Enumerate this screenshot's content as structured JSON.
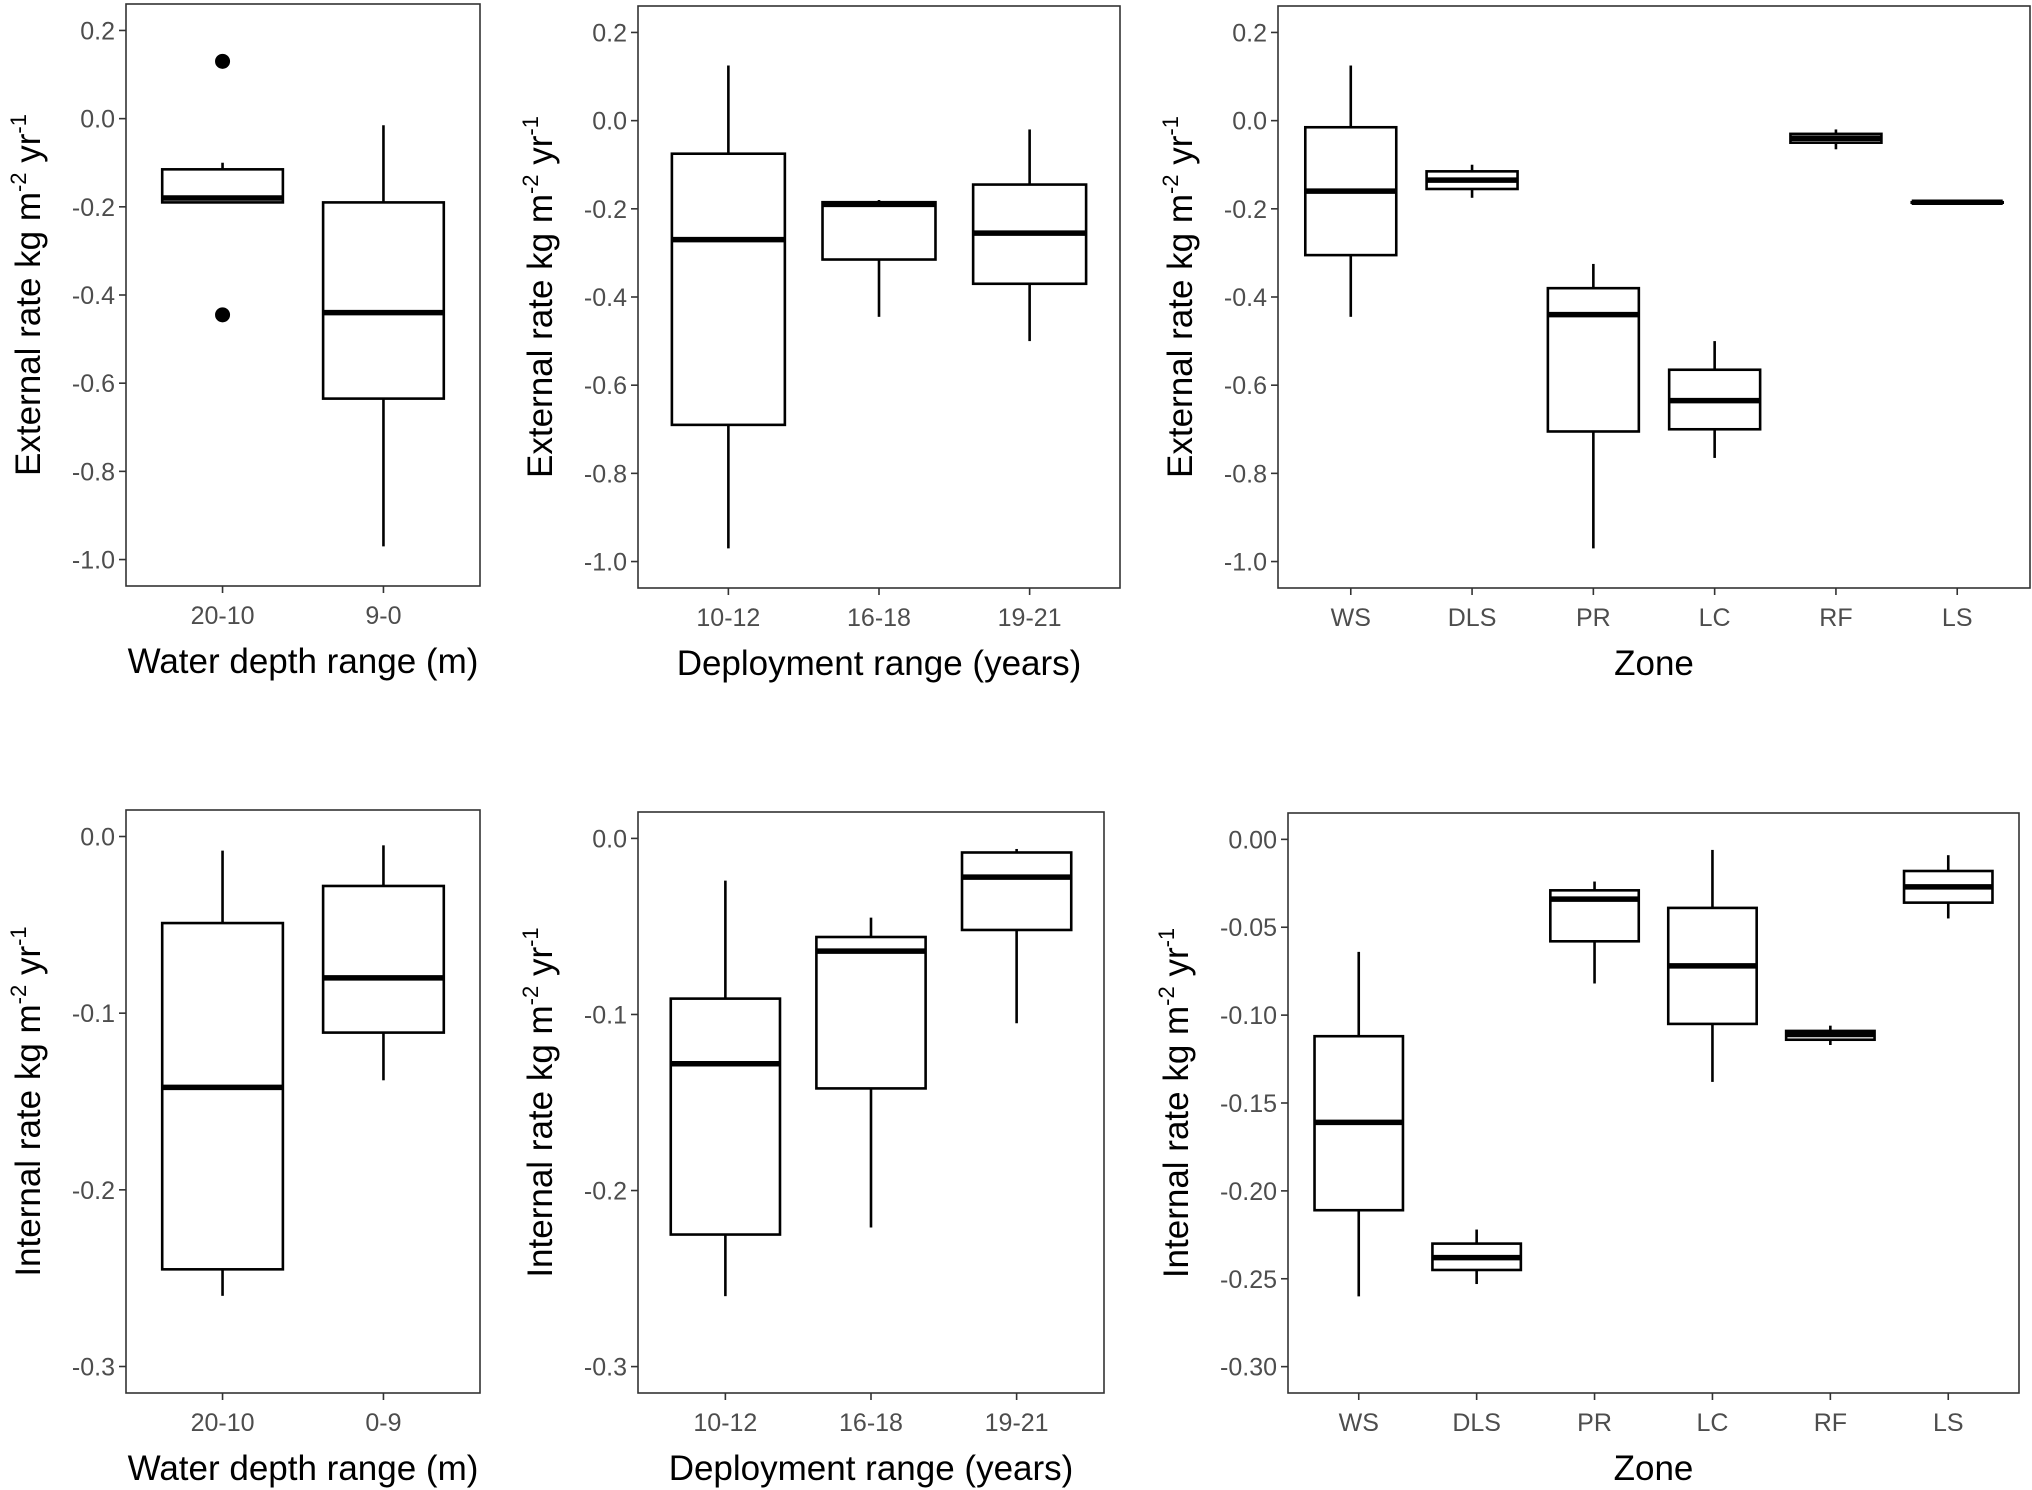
{
  "chart_data": [
    {
      "type": "box",
      "xlabel": "Water depth range (m)",
      "ylabel": {
        "text": "External rate kg m",
        "sup1": "-2",
        "mid": " yr",
        "sup2": "-1"
      },
      "ylim": [
        -1.06,
        0.26
      ],
      "yticks": [
        0.2,
        0.0,
        -0.2,
        -0.4,
        -0.6,
        -0.8,
        -1.0
      ],
      "ytick_labels": [
        "0.2",
        "0.0",
        "-0.2",
        "-0.4",
        "-0.6",
        "-0.8",
        "-1.0"
      ],
      "grid": false,
      "categories": [
        "20-10",
        "9-0"
      ],
      "boxes": [
        {
          "min": -0.19,
          "q1": -0.19,
          "median": -0.18,
          "q3": -0.115,
          "max": -0.1,
          "outliers": [
            0.13,
            -0.445
          ]
        },
        {
          "min": -0.97,
          "q1": -0.635,
          "median": -0.44,
          "q3": -0.19,
          "max": -0.015,
          "outliers": []
        }
      ]
    },
    {
      "type": "box",
      "xlabel": "Deployment range (years)",
      "ylabel": {
        "text": "External rate kg m",
        "sup1": "-2",
        "mid": " yr",
        "sup2": "-1"
      },
      "ylim": [
        -1.06,
        0.26
      ],
      "yticks": [
        0.2,
        0.0,
        -0.2,
        -0.4,
        -0.6,
        -0.8,
        -1.0
      ],
      "ytick_labels": [
        "0.2",
        "0.0",
        "-0.2",
        "-0.4",
        "-0.6",
        "-0.8",
        "-1.0"
      ],
      "grid": false,
      "categories": [
        "10-12",
        "16-18",
        "19-21"
      ],
      "boxes": [
        {
          "min": -0.97,
          "q1": -0.69,
          "median": -0.27,
          "q3": -0.075,
          "max": 0.125,
          "outliers": []
        },
        {
          "min": -0.445,
          "q1": -0.315,
          "median": -0.19,
          "q3": -0.185,
          "max": -0.18,
          "outliers": []
        },
        {
          "min": -0.5,
          "q1": -0.37,
          "median": -0.255,
          "q3": -0.145,
          "max": -0.02,
          "outliers": []
        }
      ]
    },
    {
      "type": "box",
      "xlabel": "Zone",
      "ylabel": {
        "text": "External rate kg m",
        "sup1": "-2",
        "mid": " yr",
        "sup2": "-1"
      },
      "ylim": [
        -1.06,
        0.26
      ],
      "yticks": [
        0.2,
        0.0,
        -0.2,
        -0.4,
        -0.6,
        -0.8,
        -1.0
      ],
      "ytick_labels": [
        "0.2",
        "0.0",
        "-0.2",
        "-0.4",
        "-0.6",
        "-0.8",
        "-1.0"
      ],
      "grid": false,
      "categories": [
        "WS",
        "DLS",
        "PR",
        "LC",
        "RF",
        "LS"
      ],
      "boxes": [
        {
          "min": -0.445,
          "q1": -0.305,
          "median": -0.16,
          "q3": -0.015,
          "max": 0.125,
          "outliers": []
        },
        {
          "min": -0.175,
          "q1": -0.155,
          "median": -0.135,
          "q3": -0.115,
          "max": -0.1,
          "outliers": []
        },
        {
          "min": -0.97,
          "q1": -0.705,
          "median": -0.44,
          "q3": -0.38,
          "max": -0.325,
          "outliers": []
        },
        {
          "min": -0.765,
          "q1": -0.7,
          "median": -0.635,
          "q3": -0.565,
          "max": -0.5,
          "outliers": []
        },
        {
          "min": -0.065,
          "q1": -0.05,
          "median": -0.04,
          "q3": -0.03,
          "max": -0.02,
          "outliers": []
        },
        {
          "min": -0.185,
          "q1": -0.185,
          "median": -0.185,
          "q3": -0.185,
          "max": -0.185,
          "outliers": []
        }
      ]
    },
    {
      "type": "box",
      "xlabel": "Water depth range (m)",
      "ylabel": {
        "text": "Internal rate kg m",
        "sup1": "-2",
        "mid": " yr",
        "sup2": "-1"
      },
      "ylim": [
        -0.315,
        0.015
      ],
      "yticks": [
        0.0,
        -0.1,
        -0.2,
        -0.3
      ],
      "ytick_labels": [
        "0.0",
        "-0.1",
        "-0.2",
        "-0.3"
      ],
      "grid": false,
      "categories": [
        "20-10",
        "0-9"
      ],
      "boxes": [
        {
          "min": -0.26,
          "q1": -0.245,
          "median": -0.142,
          "q3": -0.049,
          "max": -0.008,
          "outliers": []
        },
        {
          "min": -0.138,
          "q1": -0.111,
          "median": -0.08,
          "q3": -0.028,
          "max": -0.005,
          "outliers": []
        }
      ]
    },
    {
      "type": "box",
      "xlabel": "Deployment range (years)",
      "ylabel": {
        "text": "Internal rate kg m",
        "sup1": "-2",
        "mid": " yr",
        "sup2": "-1"
      },
      "ylim": [
        -0.315,
        0.015
      ],
      "yticks": [
        0.0,
        -0.1,
        -0.2,
        -0.3
      ],
      "ytick_labels": [
        "0.0",
        "-0.1",
        "-0.2",
        "-0.3"
      ],
      "grid": false,
      "categories": [
        "10-12",
        "16-18",
        "19-21"
      ],
      "boxes": [
        {
          "min": -0.26,
          "q1": -0.225,
          "median": -0.128,
          "q3": -0.091,
          "max": -0.024,
          "outliers": []
        },
        {
          "min": -0.221,
          "q1": -0.142,
          "median": -0.064,
          "q3": -0.056,
          "max": -0.045,
          "outliers": []
        },
        {
          "min": -0.105,
          "q1": -0.052,
          "median": -0.022,
          "q3": -0.008,
          "max": -0.006,
          "outliers": []
        }
      ]
    },
    {
      "type": "box",
      "xlabel": "Zone",
      "ylabel": {
        "text": "Internal rate kg m",
        "sup1": "-2",
        "mid": " yr",
        "sup2": "-1"
      },
      "ylim": [
        -0.315,
        0.015
      ],
      "yticks": [
        0.0,
        -0.05,
        -0.1,
        -0.15,
        -0.2,
        -0.25,
        -0.3
      ],
      "ytick_labels": [
        "0.00",
        "-0.05",
        "-0.10",
        "-0.15",
        "-0.20",
        "-0.25",
        "-0.30"
      ],
      "grid": false,
      "categories": [
        "WS",
        "DLS",
        "PR",
        "LC",
        "RF",
        "LS"
      ],
      "boxes": [
        {
          "min": -0.26,
          "q1": -0.211,
          "median": -0.161,
          "q3": -0.112,
          "max": -0.064,
          "outliers": []
        },
        {
          "min": -0.253,
          "q1": -0.245,
          "median": -0.238,
          "q3": -0.23,
          "max": -0.222,
          "outliers": []
        },
        {
          "min": -0.082,
          "q1": -0.058,
          "median": -0.034,
          "q3": -0.029,
          "max": -0.024,
          "outliers": []
        },
        {
          "min": -0.138,
          "q1": -0.105,
          "median": -0.072,
          "q3": -0.039,
          "max": -0.006,
          "outliers": []
        },
        {
          "min": -0.117,
          "q1": -0.114,
          "median": -0.111,
          "q3": -0.109,
          "max": -0.106,
          "outliers": []
        },
        {
          "min": -0.045,
          "q1": -0.036,
          "median": -0.027,
          "q3": -0.018,
          "max": -0.009,
          "outliers": []
        }
      ]
    }
  ]
}
